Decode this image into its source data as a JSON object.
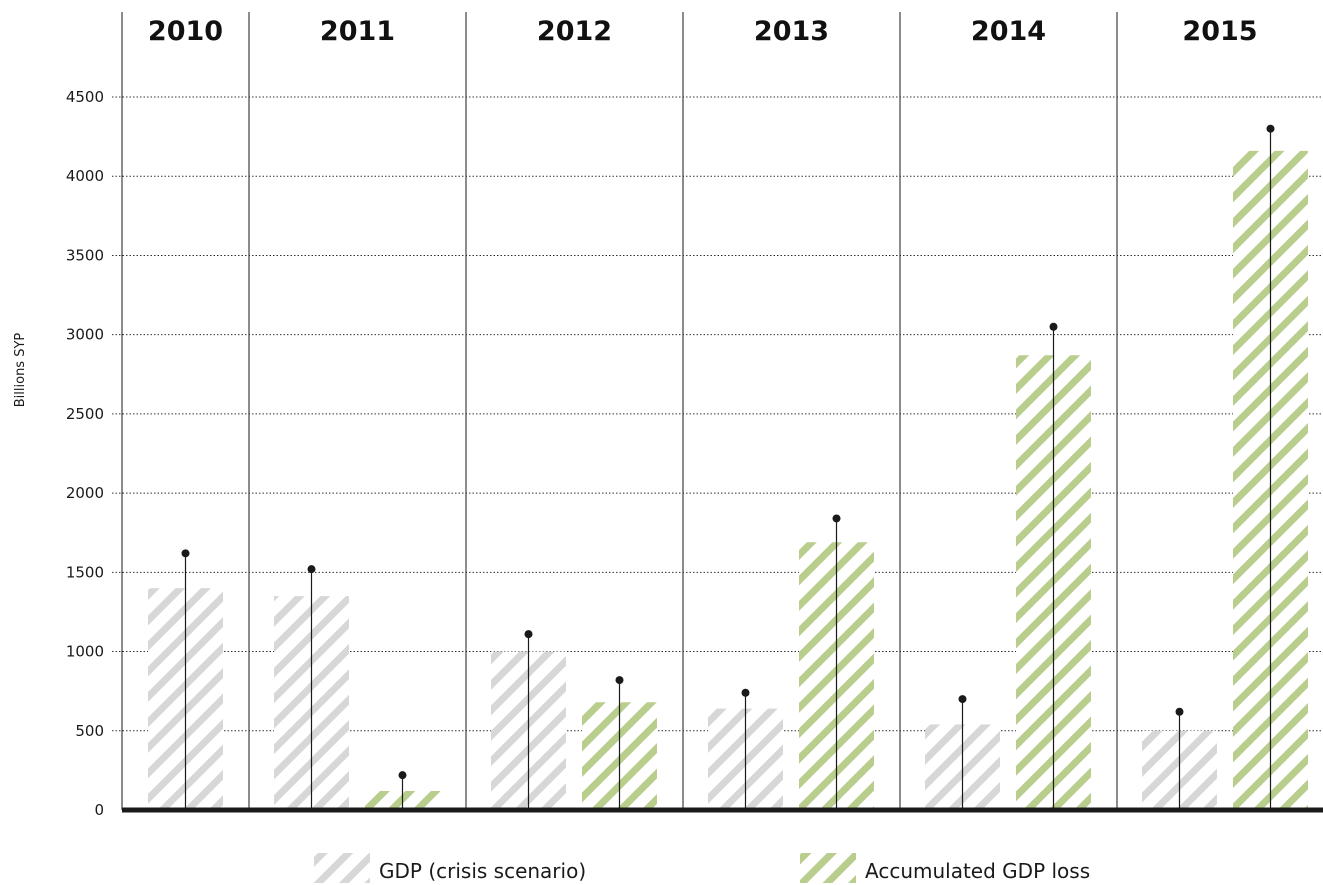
{
  "chart_data": {
    "type": "bar",
    "categories": [
      "2010",
      "2011",
      "2012",
      "2013",
      "2014",
      "2015"
    ],
    "ylabel": "Billions SYP",
    "ylim": [
      0,
      4500
    ],
    "yticks": [
      0,
      500,
      1000,
      1500,
      2000,
      2500,
      3000,
      3500,
      4000,
      4500
    ],
    "grid": "horizontal dotted",
    "legend_position": "bottom",
    "colors": {
      "gdp": "#d7d7d7",
      "loss": "#b9cd8d",
      "marker": "#1a1a1a"
    },
    "series": [
      {
        "name": "GDP (crisis scenario)",
        "values": [
          1400,
          1350,
          1000,
          640,
          540,
          500
        ],
        "markers": [
          1620,
          1520,
          1110,
          740,
          700,
          620
        ]
      },
      {
        "name": "Accumulated GDP loss",
        "values": [
          null,
          120,
          680,
          1690,
          2870,
          4160
        ],
        "markers": [
          null,
          220,
          820,
          1840,
          3050,
          4300
        ]
      }
    ]
  }
}
